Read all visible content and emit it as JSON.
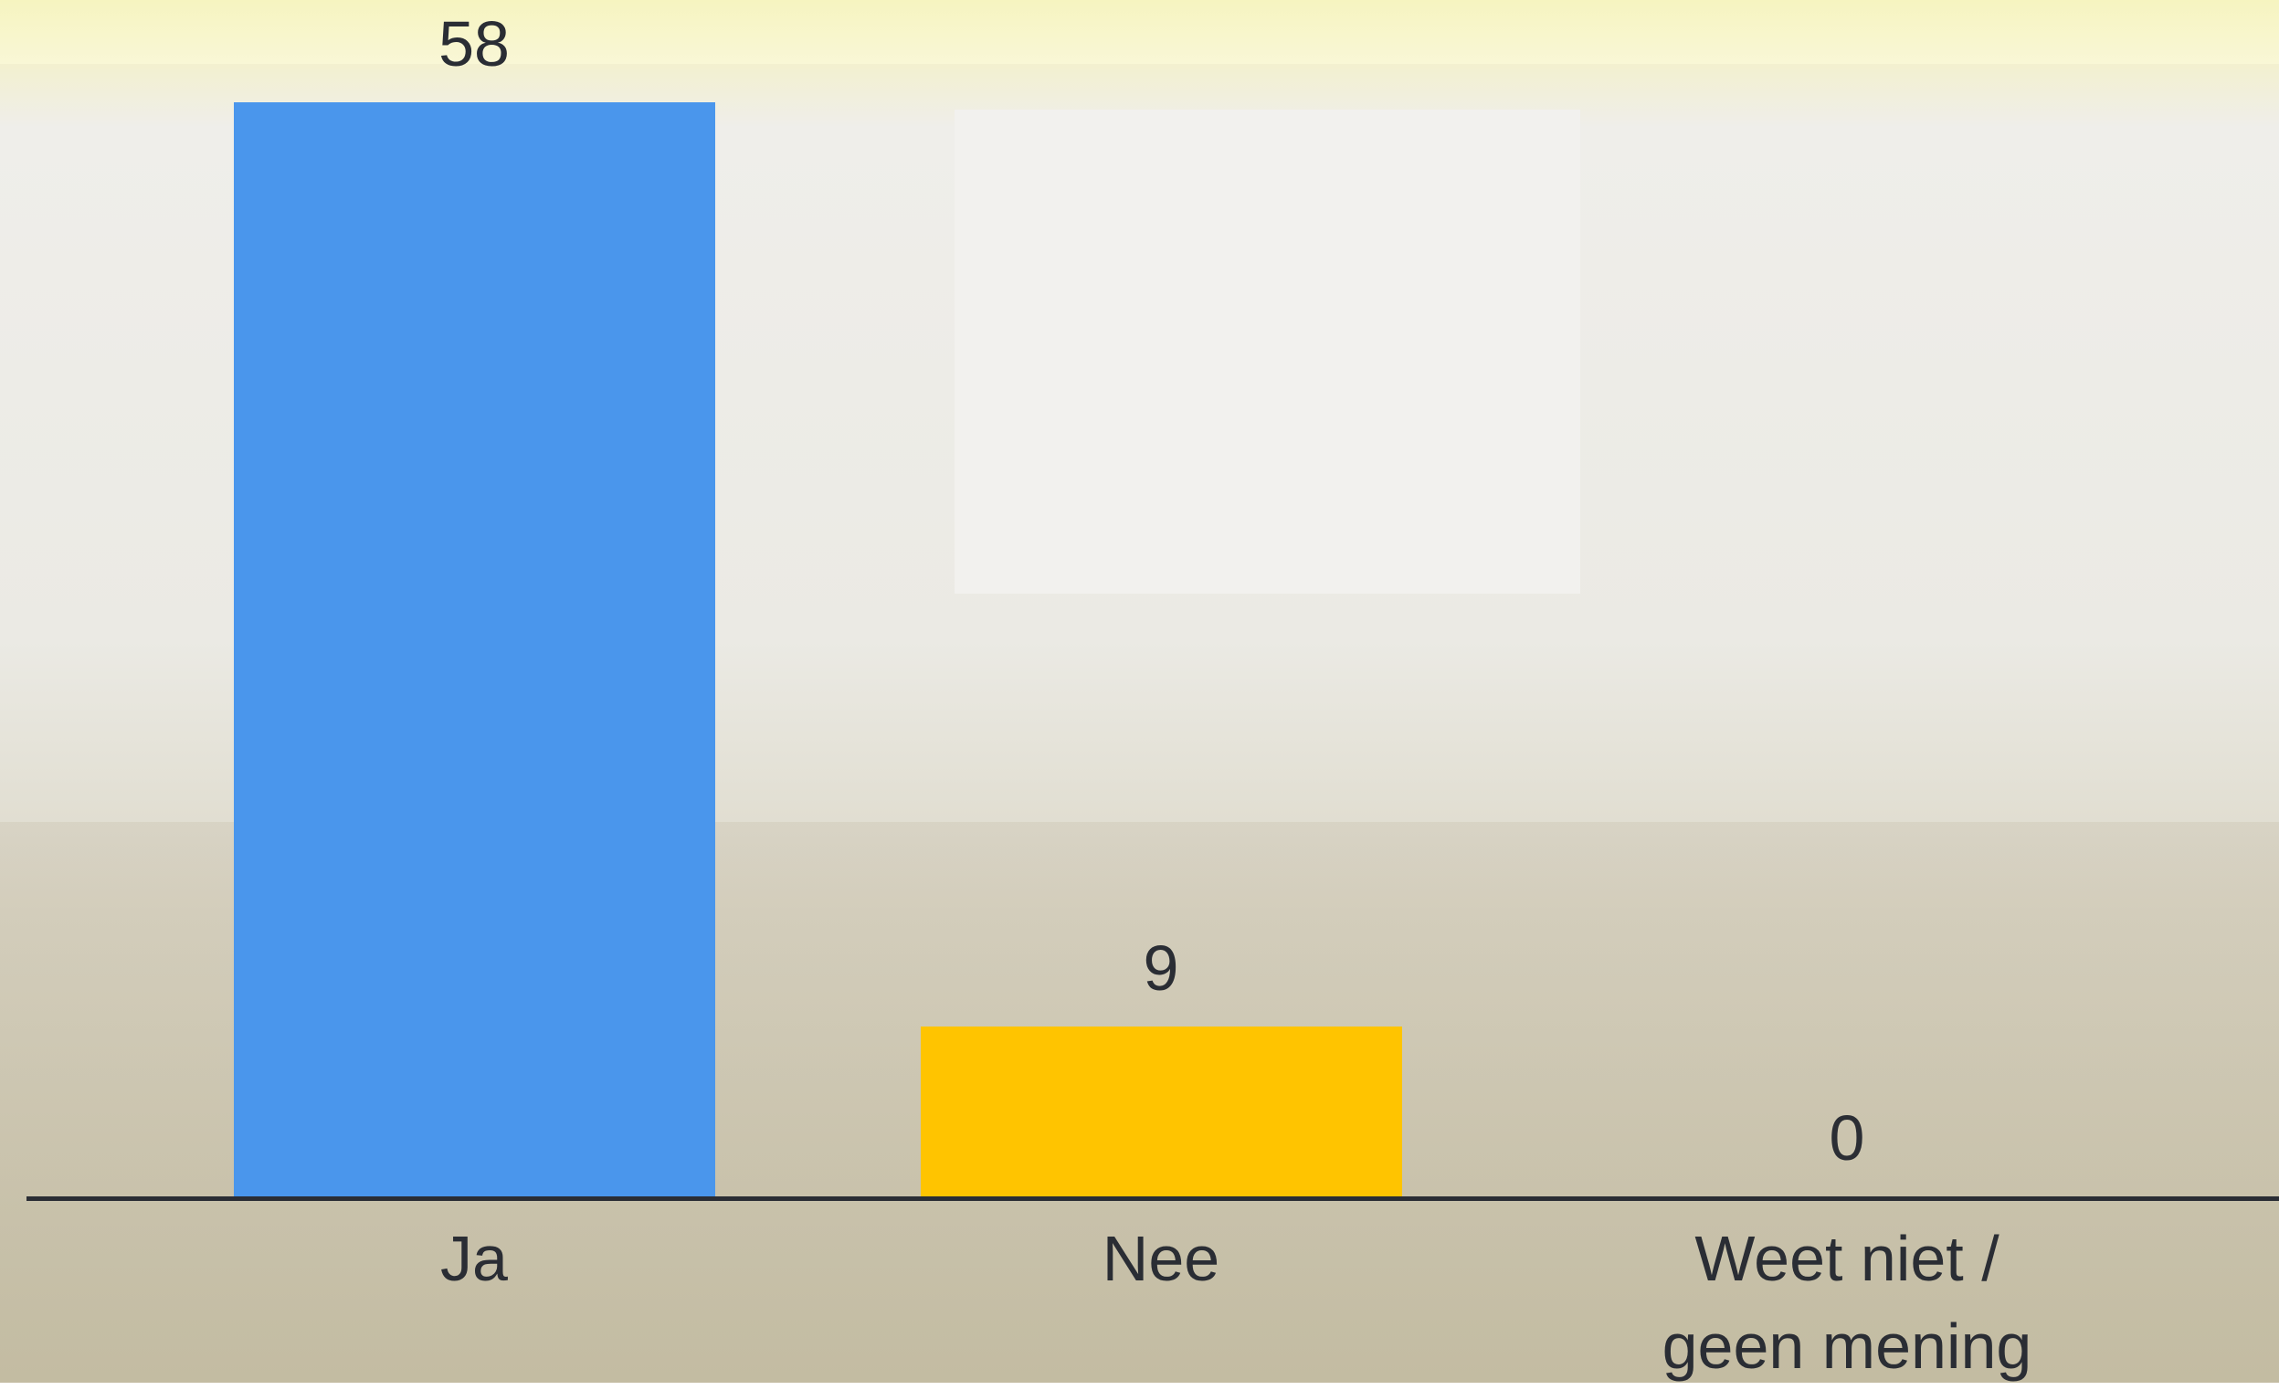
{
  "chart_data": {
    "type": "bar",
    "categories": [
      "Ja",
      "Nee",
      "Weet niet / geen mening"
    ],
    "values": [
      58,
      9,
      0
    ],
    "colors": [
      "#4a96ec",
      "#ffc400",
      "#ffc400"
    ]
  }
}
